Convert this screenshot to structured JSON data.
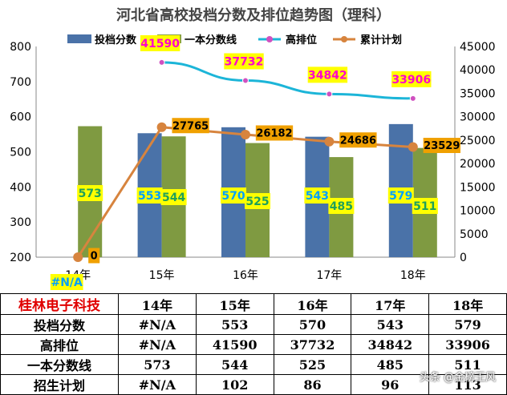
{
  "chart_data": {
    "type": "bar",
    "title": "河北省高校投档分数及排位趋势图（理科）",
    "categories": [
      "14年",
      "15年",
      "16年",
      "17年",
      "18年"
    ],
    "ylim_left": [
      200,
      800
    ],
    "yticks_left": [
      200,
      300,
      400,
      500,
      600,
      700,
      800
    ],
    "ylim_right": [
      0,
      45000
    ],
    "yticks_right": [
      0,
      5000,
      10000,
      15000,
      20000,
      25000,
      30000,
      35000,
      40000,
      45000
    ],
    "grid": false,
    "legend_position": "top",
    "series": [
      {
        "name": "投档分数",
        "kind": "bar",
        "axis": "left",
        "color": "#4a72a8",
        "values": [
          null,
          553,
          570,
          543,
          579
        ],
        "labels": [
          "#N/A",
          "553",
          "570",
          "543",
          "579"
        ]
      },
      {
        "name": "一本分数线",
        "kind": "bar",
        "axis": "left",
        "color": "#7f9a41",
        "values": [
          573,
          544,
          525,
          485,
          511
        ],
        "labels": [
          "573",
          "544",
          "525",
          "485",
          "511"
        ]
      },
      {
        "name": "高排位",
        "kind": "line",
        "axis": "right",
        "color": "#1cb5d8",
        "values": [
          null,
          41590,
          37732,
          34842,
          33906
        ],
        "labels": [
          "",
          "41590",
          "37732",
          "34842",
          "33906"
        ]
      },
      {
        "name": "累计计划",
        "kind": "line",
        "axis": "right",
        "color": "#d7843e",
        "values": [
          0,
          27765,
          26182,
          24686,
          23529
        ],
        "labels": [
          "0",
          "27765",
          "26182",
          "24686",
          "23529"
        ]
      }
    ]
  },
  "table": {
    "brand": "桂林电子科技",
    "headers": [
      "14年",
      "15年",
      "16年",
      "17年",
      "18年"
    ],
    "rows": [
      {
        "label": "投档分数",
        "values": [
          "#N/A",
          "553",
          "570",
          "543",
          "579"
        ]
      },
      {
        "label": "高排位",
        "values": [
          "#N/A",
          "41590",
          "37732",
          "34842",
          "33906"
        ]
      },
      {
        "label": "一本分数线",
        "values": [
          "573",
          "544",
          "525",
          "485",
          "511"
        ]
      },
      {
        "label": "招生计划",
        "values": [
          "#N/A",
          "102",
          "86",
          "96",
          "113"
        ]
      }
    ]
  },
  "watermark": "头条 @金榜王风",
  "colors": {
    "label_bg": "#ffff00",
    "rank_label_text": "#ff00cc",
    "bar_label_text": "#00a0ff",
    "line_label_bg": "#f0a000"
  }
}
